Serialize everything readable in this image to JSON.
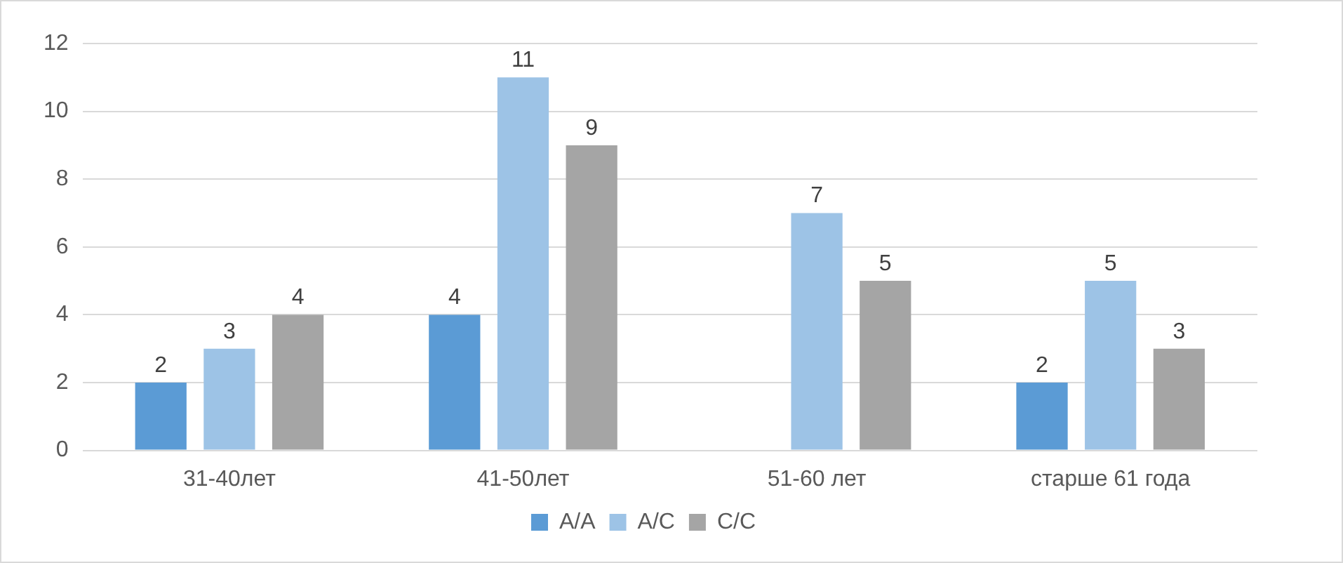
{
  "chart_data": {
    "type": "bar",
    "categories": [
      "31-40лет",
      "41-50лет",
      "51-60 лет",
      "старше 61 года"
    ],
    "series": [
      {
        "name": "A/A",
        "color": "#5b9bd5",
        "values": [
          2,
          4,
          null,
          2
        ]
      },
      {
        "name": "A/C",
        "color": "#9dc3e6",
        "values": [
          3,
          11,
          7,
          5
        ]
      },
      {
        "name": "C/C",
        "color": "#a5a5a5",
        "values": [
          4,
          9,
          5,
          3
        ]
      }
    ],
    "ylim": [
      0,
      12
    ],
    "yticks": [
      0,
      2,
      4,
      6,
      8,
      10,
      12
    ],
    "grid": "y",
    "legend": "bottom",
    "data_labels": true
  }
}
